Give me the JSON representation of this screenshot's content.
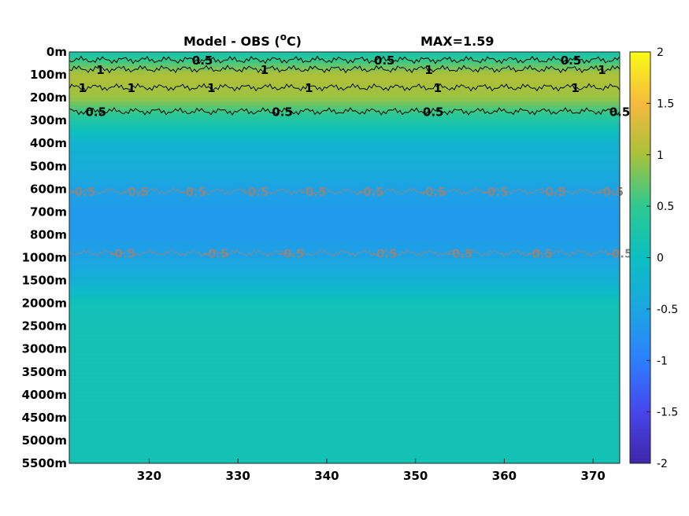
{
  "figure": {
    "title": "Model - OBS (",
    "title_superscript": "o",
    "title_unit_suffix": "C)",
    "max_label": "MAX=1.59"
  },
  "chart_data": {
    "type": "heatmap",
    "title": "Model - OBS (oC)",
    "max_value": 1.59,
    "x": {
      "range": [
        311,
        373
      ],
      "ticks": [
        320,
        330,
        340,
        350,
        360,
        370
      ],
      "tick_labels": [
        "320",
        "330",
        "340",
        "350",
        "360",
        "370"
      ]
    },
    "y": {
      "levels": [
        "0m",
        "100m",
        "200m",
        "300m",
        "400m",
        "500m",
        "600m",
        "700m",
        "800m",
        "1000m",
        "1500m",
        "2000m",
        "2500m",
        "3000m",
        "3500m",
        "4000m",
        "4500m",
        "5000m",
        "5500m"
      ],
      "level_anomaly": [
        0.2,
        1.05,
        0.95,
        0.3,
        -0.25,
        -0.35,
        -0.55,
        -0.65,
        -0.65,
        -0.55,
        -0.3,
        0.1,
        0.12,
        0.12,
        0.12,
        0.12,
        0.12,
        0.12,
        0.12
      ]
    },
    "colorbar": {
      "range": [
        -2,
        2
      ],
      "ticks": [
        2,
        1.5,
        1,
        0.5,
        0,
        -0.5,
        -1,
        -1.5,
        -2
      ],
      "tick_labels": [
        "2",
        "1.5",
        "1",
        "0.5",
        "0",
        "-0.5",
        "-1",
        "-1.5",
        "-2"
      ],
      "colormap": "parula"
    },
    "contours": [
      {
        "level": 0.5,
        "color": "#000000",
        "depth_index": 0.35,
        "labels": [
          {
            "x": 326,
            "text": "0.5"
          },
          {
            "x": 346.5,
            "text": "0.5"
          },
          {
            "x": 367.5,
            "text": "0.5"
          }
        ]
      },
      {
        "level": 1,
        "color": "#000000",
        "depth_index": 0.75,
        "labels": [
          {
            "x": 314.5,
            "text": "1"
          },
          {
            "x": 333,
            "text": "1"
          },
          {
            "x": 351.5,
            "text": "1"
          },
          {
            "x": 371,
            "text": "1"
          }
        ]
      },
      {
        "level": 1,
        "color": "#000000",
        "depth_index": 1.55,
        "labels": [
          {
            "x": 312.5,
            "text": "1"
          },
          {
            "x": 318,
            "text": "1"
          },
          {
            "x": 327,
            "text": "1"
          },
          {
            "x": 338,
            "text": "1"
          },
          {
            "x": 352.5,
            "text": "1"
          },
          {
            "x": 368,
            "text": "1"
          }
        ]
      },
      {
        "level": 0.5,
        "color": "#000000",
        "depth_index": 2.6,
        "labels": [
          {
            "x": 314,
            "text": "0.5"
          },
          {
            "x": 335,
            "text": "0.5"
          },
          {
            "x": 352,
            "text": "0.5"
          },
          {
            "x": 373,
            "text": "0.5"
          }
        ]
      },
      {
        "level": -0.5,
        "color": "#888888",
        "depth_index": 6.1,
        "labels": [
          {
            "x": 312.5,
            "text": "-0.5"
          },
          {
            "x": 318.5,
            "text": "-0.5"
          },
          {
            "x": 325,
            "text": "-0.5"
          },
          {
            "x": 332,
            "text": "-0.5"
          },
          {
            "x": 338.5,
            "text": "-0.5"
          },
          {
            "x": 345,
            "text": "-0.5"
          },
          {
            "x": 352,
            "text": "-0.5"
          },
          {
            "x": 359,
            "text": "-0.5"
          },
          {
            "x": 365.5,
            "text": "-0.5"
          },
          {
            "x": 372,
            "text": "-0.5"
          }
        ]
      },
      {
        "level": -0.5,
        "color": "#888888",
        "depth_index": 8.8,
        "labels": [
          {
            "x": 317,
            "text": "-0.5"
          },
          {
            "x": 327.5,
            "text": "-0.5"
          },
          {
            "x": 336,
            "text": "-0.5"
          },
          {
            "x": 346.5,
            "text": "-0.5"
          },
          {
            "x": 355,
            "text": "-0.5"
          },
          {
            "x": 364,
            "text": "-0.5"
          },
          {
            "x": 373,
            "text": "-0.5"
          }
        ]
      }
    ]
  }
}
